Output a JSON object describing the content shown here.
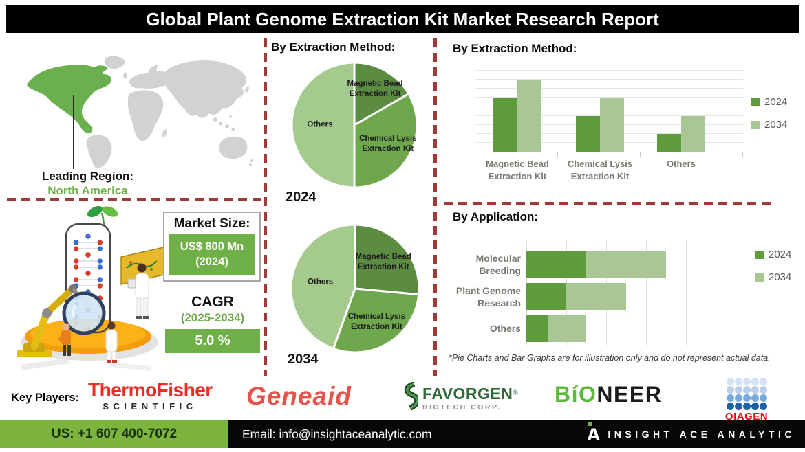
{
  "title_bar": {
    "title": "Global Plant Genome Extraction Kit Market Research Report"
  },
  "region_panel": {
    "leading_label": "Leading Region:",
    "leading_value": "North America"
  },
  "market_panel": {
    "market_size_label": "Market Size:",
    "market_size_value": "US$ 800 Mn",
    "market_size_year": "(2024)",
    "cagr_label": "CAGR",
    "cagr_period": "(2025-2034)",
    "cagr_value": "5.0 %"
  },
  "sections": {
    "pie_heading": "By Extraction Method:",
    "bar_heading": "By Extraction Method:",
    "application_heading": "By Application:",
    "footnote": "*Pie Charts and Bar Graphs are for illustration only and do not represent actual data."
  },
  "chart_data": [
    {
      "type": "pie",
      "title": "By Extraction Method:",
      "year_label": "2024",
      "slices": [
        {
          "label": "Magnetic Bead Extraction Kit",
          "value": 16.7,
          "color": "#5c8c42",
          "label_r": 0.66,
          "label_w": 105
        },
        {
          "label": "Chemical Lysis Extraction Kit",
          "value": 33.3,
          "color": "#6fa84c",
          "label_r": 0.62,
          "label_w": 125
        },
        {
          "label": "Others",
          "value": 50,
          "color": "#a5ca8d",
          "label_r": 0.55,
          "label_w": 70
        }
      ]
    },
    {
      "type": "pie",
      "title": "By Extraction Method:",
      "year_label": "2034",
      "slices": [
        {
          "label": "Magnetic Bead Extraction Kit",
          "value": 26.5,
          "color": "#5c8c42",
          "label_r": 0.6,
          "label_w": 88
        },
        {
          "label": "Chemical Lysis Extraction Kit",
          "value": 29,
          "color": "#6fa84c",
          "label_r": 0.63,
          "label_w": 128
        },
        {
          "label": "Others",
          "value": 44.5,
          "color": "#a5ca8d",
          "label_r": 0.55,
          "label_w": 70
        }
      ]
    },
    {
      "type": "bar",
      "title": "By Extraction Method:",
      "categories": [
        "Magnetic Bead Extraction Kit",
        "Chemical Lysis Extraction Kit",
        "Others"
      ],
      "series": [
        {
          "name": "2024",
          "color": "#5f9a3d",
          "values": [
            6,
            4,
            2
          ]
        },
        {
          "name": "2034",
          "color": "#a9c795",
          "values": [
            8,
            6,
            4
          ]
        }
      ],
      "ylim": [
        0,
        9
      ],
      "grid": true,
      "legend_position": "right",
      "note": "illustrative only"
    },
    {
      "type": "stacked-bar-horizontal",
      "title": "By Application:",
      "categories": [
        "Molecular Breeding",
        "Plant Genome Research",
        "Others"
      ],
      "series": [
        {
          "name": "2024",
          "color": "#5f9a3d",
          "values": [
            1.5,
            1.0,
            0.55
          ]
        },
        {
          "name": "2034",
          "color": "#a9c795",
          "values": [
            2.0,
            1.5,
            0.95
          ]
        }
      ],
      "xlim": [
        0,
        5
      ],
      "grid": true,
      "legend_position": "right",
      "note": "illustrative only"
    }
  ],
  "key_players": {
    "label": "Key Players:",
    "thermo_line1": "ThermoFisher",
    "thermo_line2": "SCIENTIFIC",
    "geneaid": "Geneaid",
    "favorgen_name": "FAVORGEN",
    "favorgen_reg": "®",
    "favorgen_sub": "BIOTECH CORP.",
    "bioneer_green": "BíO",
    "bioneer_black": "NEER",
    "qiagen": "QIAGEN",
    "qiagen_dot_rows": [
      "#d4e2f3",
      "#b9d0eb",
      "#79a9dc",
      "#1f5fa8"
    ]
  },
  "footer": {
    "phone": "US: +1 607 400-7072",
    "email": "Email: info@insightaceanalytic.com",
    "brand": "INSIGHT ACE ANALYTIC"
  },
  "colors": {
    "accent_green": "#6fb048",
    "series_2024": "#5f9a3d",
    "series_2034": "#a9c795",
    "dashed_line_red": "#9e3a38",
    "footer_green": "#7cb43e",
    "map_highlight": "#6ab04f",
    "map_base": "#d2d2d2",
    "thermo_red": "#ed2d24",
    "geneaid_red": "#e5544b",
    "favorgen_green": "#2d6a35",
    "bioneer_green": "#5cb93c",
    "qiagen_red": "#e30613"
  }
}
